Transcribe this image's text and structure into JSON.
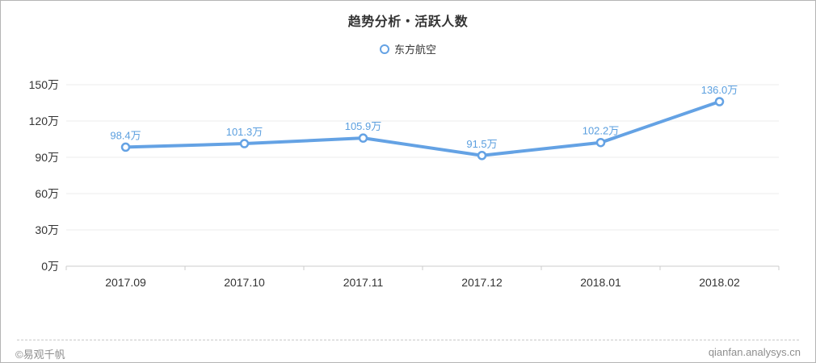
{
  "title": "趋势分析・活跃人数",
  "legend": {
    "label": "东方航空",
    "marker": "circle-outline-icon"
  },
  "footer": {
    "copyright": "©易观千帆",
    "site": "qianfan.analysys.cn"
  },
  "colors": {
    "line": "#64a2e4",
    "point_fill": "#ffffff",
    "value_label": "#5b9fdf",
    "grid": "#eeeeee",
    "axis": "#cccccc",
    "axis_text": "#333333",
    "muted_text": "#8e8e8e",
    "border": "#b5b5b5"
  },
  "chart_data": {
    "type": "line",
    "title": "趋势分析・活跃人数",
    "categories": [
      "2017.09",
      "2017.10",
      "2017.11",
      "2017.12",
      "2018.01",
      "2018.02"
    ],
    "series": [
      {
        "name": "东方航空",
        "values": [
          98.4,
          101.3,
          105.9,
          91.5,
          102.2,
          136.0
        ],
        "labels": [
          "98.4万",
          "101.3万",
          "105.9万",
          "91.5万",
          "102.2万",
          "136.0万"
        ]
      }
    ],
    "xlabel": "",
    "ylabel": "",
    "unit": "万",
    "y_ticks": [
      "0万",
      "30万",
      "60万",
      "90万",
      "120万",
      "150万"
    ],
    "ylim": [
      0,
      150
    ],
    "grid": true,
    "gridlines": "horizontal",
    "legend_position": "top-center"
  }
}
